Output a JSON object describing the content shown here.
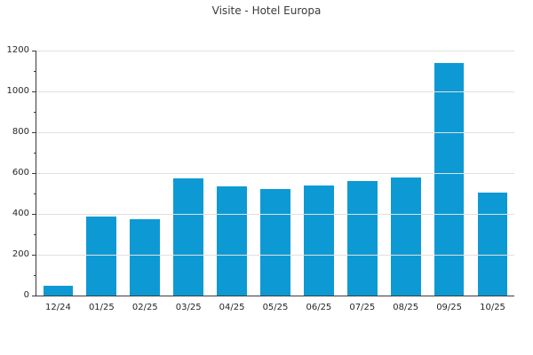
{
  "chart_data": {
    "type": "bar",
    "title": "Visite - Hotel Europa",
    "categories": [
      "12/24",
      "01/25",
      "02/25",
      "03/25",
      "04/25",
      "05/25",
      "06/25",
      "07/25",
      "08/25",
      "09/25",
      "10/25"
    ],
    "values": [
      50,
      385,
      375,
      575,
      535,
      520,
      540,
      560,
      580,
      1140,
      505
    ],
    "xlabel": "",
    "ylabel": "",
    "ylim": [
      0,
      1200
    ],
    "y_major_ticks": [
      0,
      200,
      400,
      600,
      800,
      1000,
      1200
    ],
    "y_minor_step": 100,
    "grid": "horizontal-major-only",
    "legend": "none",
    "colors": {
      "bar": "#0d9ad4",
      "grid": "#e0e0e0",
      "axis": "#3a3a3a",
      "tick_label": "#262626",
      "title": "#3a3a3a",
      "background": "#ffffff"
    }
  }
}
